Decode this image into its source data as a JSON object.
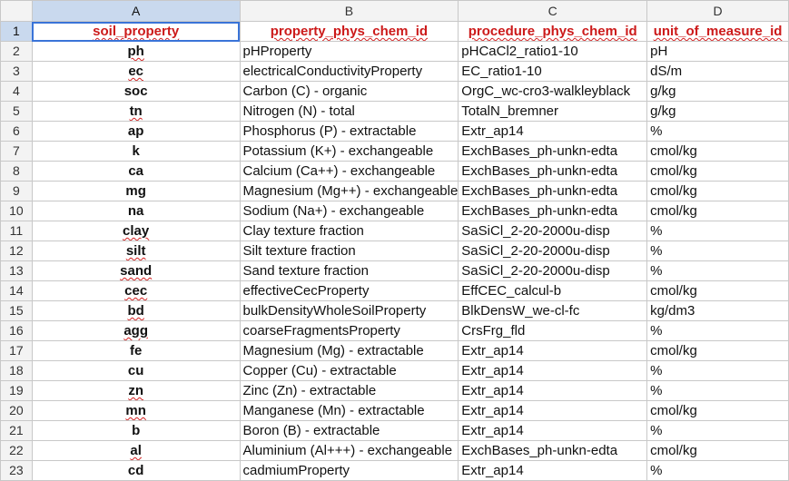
{
  "columns": [
    "A",
    "B",
    "C",
    "D"
  ],
  "header": {
    "soil_property": "soil_property",
    "property_phys_chem_id": "property_phys_chem_id",
    "procedure_phys_chem_id": "procedure_phys_chem_id",
    "unit_of_measure_id": "unit_of_measure_id"
  },
  "rows": [
    {
      "num": "2",
      "a": "ph",
      "b": "pHProperty",
      "c": "pHCaCl2_ratio1-10",
      "d": "pH"
    },
    {
      "num": "3",
      "a": "ec",
      "b": "electricalConductivityProperty",
      "c": "EC_ratio1-10",
      "d": "dS/m"
    },
    {
      "num": "4",
      "a": "soc",
      "b": "Carbon (C) - organic",
      "c": "OrgC_wc-cro3-walkleyblack",
      "d": "g/kg"
    },
    {
      "num": "5",
      "a": "tn",
      "b": "Nitrogen (N) - total",
      "c": "TotalN_bremner",
      "d": "g/kg"
    },
    {
      "num": "6",
      "a": "ap",
      "b": "Phosphorus (P) - extractable",
      "c": "Extr_ap14",
      "d": "%"
    },
    {
      "num": "7",
      "a": "k",
      "b": "Potassium (K+) - exchangeable",
      "c": "ExchBases_ph-unkn-edta",
      "d": "cmol/kg"
    },
    {
      "num": "8",
      "a": "ca",
      "b": "Calcium (Ca++) - exchangeable",
      "c": "ExchBases_ph-unkn-edta",
      "d": "cmol/kg"
    },
    {
      "num": "9",
      "a": "mg",
      "b": "Magnesium (Mg++) - exchangeable",
      "c": "ExchBases_ph-unkn-edta",
      "d": "cmol/kg"
    },
    {
      "num": "10",
      "a": "na",
      "b": "Sodium (Na+) - exchangeable",
      "c": "ExchBases_ph-unkn-edta",
      "d": "cmol/kg"
    },
    {
      "num": "11",
      "a": "clay",
      "b": "Clay texture fraction",
      "c": "SaSiCl_2-20-2000u-disp",
      "d": "%"
    },
    {
      "num": "12",
      "a": "silt",
      "b": "Silt texture fraction",
      "c": "SaSiCl_2-20-2000u-disp",
      "d": "%"
    },
    {
      "num": "13",
      "a": "sand",
      "b": "Sand texture fraction",
      "c": "SaSiCl_2-20-2000u-disp",
      "d": "%"
    },
    {
      "num": "14",
      "a": "cec",
      "b": "effectiveCecProperty",
      "c": "EffCEC_calcul-b",
      "d": "cmol/kg"
    },
    {
      "num": "15",
      "a": "bd",
      "b": "bulkDensityWholeSoilProperty",
      "c": "BlkDensW_we-cl-fc",
      "d": "kg/dm3"
    },
    {
      "num": "16",
      "a": "agg",
      "b": "coarseFragmentsProperty",
      "c": "CrsFrg_fld",
      "d": "%"
    },
    {
      "num": "17",
      "a": "fe",
      "b": "Magnesium (Mg) - extractable",
      "c": "Extr_ap14",
      "d": "cmol/kg"
    },
    {
      "num": "18",
      "a": "cu",
      "b": "Copper (Cu) - extractable",
      "c": "Extr_ap14",
      "d": "%"
    },
    {
      "num": "19",
      "a": "zn",
      "b": "Zinc (Zn) - extractable",
      "c": "Extr_ap14",
      "d": "%"
    },
    {
      "num": "20",
      "a": "mn",
      "b": "Manganese (Mn) - extractable",
      "c": "Extr_ap14",
      "d": "cmol/kg"
    },
    {
      "num": "21",
      "a": "b",
      "b": "Boron (B) - extractable",
      "c": "Extr_ap14",
      "d": "%"
    },
    {
      "num": "22",
      "a": "al",
      "b": "Aluminium (Al+++) - exchangeable",
      "c": "ExchBases_ph-unkn-edta",
      "d": "cmol/kg"
    },
    {
      "num": "23",
      "a": "cd",
      "b": "cadmiumProperty",
      "c": "Extr_ap14",
      "d": "%"
    }
  ]
}
